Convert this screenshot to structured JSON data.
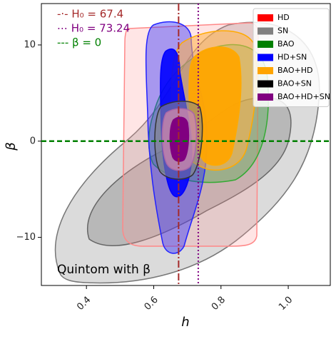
{
  "chart_data": {
    "type": "contour",
    "x_label": "h",
    "y_label": "β",
    "xlim": [
      0.266,
      1.125
    ],
    "ylim": [
      -15,
      14.3
    ],
    "xticks": [
      0.4,
      0.6,
      0.8,
      {
        "value": 1,
        "label": "1.0"
      }
    ],
    "yticks": [
      {
        "value": -10,
        "label": "−10"
      },
      0,
      10
    ],
    "series": [
      {
        "name": "HD",
        "color": "#ff0000"
      },
      {
        "name": "SN",
        "color": "#808080"
      },
      {
        "name": "BAO",
        "color": "#008000"
      },
      {
        "name": "HD+SN",
        "color": "#0000ff"
      },
      {
        "name": "BAO+HD",
        "color": "#ffa500"
      },
      {
        "name": "BAO+SN",
        "color": "#000000"
      },
      {
        "name": "BAO+HD+SN",
        "color": "#800080"
      }
    ],
    "vlines": [
      {
        "label": "-·- H₀ = 67.4",
        "value": 0.674,
        "color": "#a52a2a"
      },
      {
        "label": "⋯ H₀ = 73.24",
        "value": 0.7324,
        "color": "#800080"
      }
    ],
    "hlines": [
      {
        "label": "--- β = 0",
        "value": 0,
        "color": "#008000"
      }
    ],
    "annotation": "Quintom with β"
  }
}
